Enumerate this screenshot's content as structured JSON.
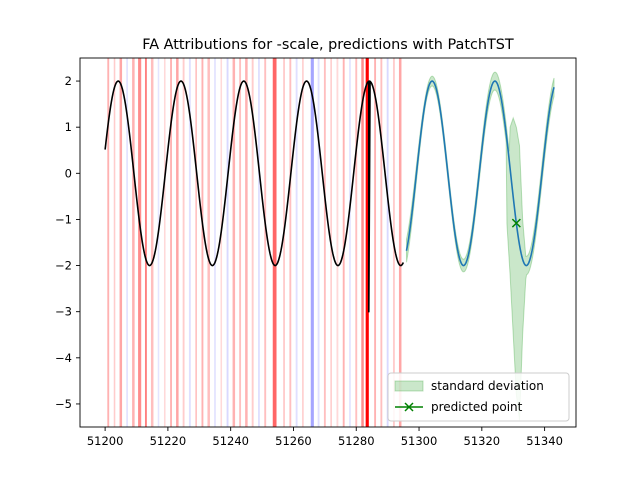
{
  "chart_data": {
    "type": "line",
    "title": "FA Attributions for -scale, predictions with PatchTST",
    "xlabel": "",
    "ylabel": "",
    "xlim": [
      51192,
      51350
    ],
    "ylim": [
      -5.5,
      2.5
    ],
    "xticks": [
      51200,
      51220,
      51240,
      51260,
      51280,
      51300,
      51320,
      51340
    ],
    "yticks": [
      -5,
      -4,
      -3,
      -2,
      -1,
      0,
      1,
      2
    ],
    "grid": false,
    "legend_position": "lower-right",
    "history": {
      "x_start": 51200,
      "x_end": 51295,
      "signal": "2*sin(2*pi*(x-51200)/20 + 0.26)",
      "color": "#000000",
      "anomaly": {
        "x": 51284,
        "min": -3.0
      }
    },
    "prediction": {
      "x_start": 51296,
      "x_end": 51343,
      "color": "#1f77b4",
      "std_color": "#2ca02c",
      "std_band": [
        {
          "x": 51296,
          "half_width": 0.25
        },
        {
          "x": 51302,
          "half_width": 0.1
        },
        {
          "x": 51309,
          "half_width": 0.12
        },
        {
          "x": 51318,
          "half_width": 0.15
        },
        {
          "x": 51325,
          "half_width": 0.2
        }
      ],
      "std_spike": [
        {
          "x": 51328,
          "upper": -1.1,
          "lower": -1.1
        },
        {
          "x": 51329,
          "upper": 1.0,
          "lower": -2.2
        },
        {
          "x": 51330,
          "upper": 1.2,
          "lower": -3.5
        },
        {
          "x": 51331,
          "upper": 1.0,
          "lower": -4.8
        },
        {
          "x": 51332,
          "upper": 0.6,
          "lower": -5.35
        },
        {
          "x": 51333,
          "upper": -1.0,
          "lower": -3.5
        },
        {
          "x": 51334,
          "upper": -1.8,
          "lower": -2.3
        }
      ]
    },
    "predicted_point": {
      "x": 51331,
      "y": -1.08,
      "color": "#008000",
      "marker": "x"
    },
    "attributions": [
      {
        "x": 51201,
        "w": 0.6,
        "color": "#ff0000",
        "alpha": 0.3
      },
      {
        "x": 51203,
        "w": 0.5,
        "color": "#ff0000",
        "alpha": 0.2
      },
      {
        "x": 51205,
        "w": 0.8,
        "color": "#ff0000",
        "alpha": 0.35
      },
      {
        "x": 51207,
        "w": 0.5,
        "color": "#0000ff",
        "alpha": 0.12
      },
      {
        "x": 51209,
        "w": 0.8,
        "color": "#ff0000",
        "alpha": 0.3
      },
      {
        "x": 51211,
        "w": 1.0,
        "color": "#ff0000",
        "alpha": 0.45
      },
      {
        "x": 51213,
        "w": 0.6,
        "color": "#ff0000",
        "alpha": 0.5
      },
      {
        "x": 51215,
        "w": 0.8,
        "color": "#ff0000",
        "alpha": 0.25
      },
      {
        "x": 51217,
        "w": 0.5,
        "color": "#0000ff",
        "alpha": 0.1
      },
      {
        "x": 51219,
        "w": 0.5,
        "color": "#ff0000",
        "alpha": 0.15
      },
      {
        "x": 51221,
        "w": 0.6,
        "color": "#ff0000",
        "alpha": 0.3
      },
      {
        "x": 51223,
        "w": 0.8,
        "color": "#ff0000",
        "alpha": 0.35
      },
      {
        "x": 51225,
        "w": 0.6,
        "color": "#ff0000",
        "alpha": 0.2
      },
      {
        "x": 51227,
        "w": 0.6,
        "color": "#0000ff",
        "alpha": 0.12
      },
      {
        "x": 51229,
        "w": 0.5,
        "color": "#ff0000",
        "alpha": 0.25
      },
      {
        "x": 51231,
        "w": 0.6,
        "color": "#ff0000",
        "alpha": 0.3
      },
      {
        "x": 51233,
        "w": 0.8,
        "color": "#ff0000",
        "alpha": 0.25
      },
      {
        "x": 51235,
        "w": 0.6,
        "color": "#0000ff",
        "alpha": 0.1
      },
      {
        "x": 51237,
        "w": 0.5,
        "color": "#ff0000",
        "alpha": 0.15
      },
      {
        "x": 51239,
        "w": 0.6,
        "color": "#0000ff",
        "alpha": 0.15
      },
      {
        "x": 51241,
        "w": 0.8,
        "color": "#ff0000",
        "alpha": 0.3
      },
      {
        "x": 51243,
        "w": 0.6,
        "color": "#ff0000",
        "alpha": 0.25
      },
      {
        "x": 51245,
        "w": 0.8,
        "color": "#ff0000",
        "alpha": 0.3
      },
      {
        "x": 51247,
        "w": 0.6,
        "color": "#ff0000",
        "alpha": 0.2
      },
      {
        "x": 51249,
        "w": 0.6,
        "color": "#0000ff",
        "alpha": 0.12
      },
      {
        "x": 51251,
        "w": 0.6,
        "color": "#ff0000",
        "alpha": 0.25
      },
      {
        "x": 51254,
        "w": 1.2,
        "color": "#ff0000",
        "alpha": 0.6
      },
      {
        "x": 51257,
        "w": 0.6,
        "color": "#ff0000",
        "alpha": 0.2
      },
      {
        "x": 51259,
        "w": 0.6,
        "color": "#ff0000",
        "alpha": 0.25
      },
      {
        "x": 51261,
        "w": 0.6,
        "color": "#0000ff",
        "alpha": 0.12
      },
      {
        "x": 51263,
        "w": 0.5,
        "color": "#ff0000",
        "alpha": 0.2
      },
      {
        "x": 51266,
        "w": 1.0,
        "color": "#0000ff",
        "alpha": 0.35
      },
      {
        "x": 51268,
        "w": 0.6,
        "color": "#0000ff",
        "alpha": 0.12
      },
      {
        "x": 51270,
        "w": 0.6,
        "color": "#ff0000",
        "alpha": 0.25
      },
      {
        "x": 51272,
        "w": 0.5,
        "color": "#ff0000",
        "alpha": 0.2
      },
      {
        "x": 51274,
        "w": 0.6,
        "color": "#ff0000",
        "alpha": 0.15
      },
      {
        "x": 51276,
        "w": 0.6,
        "color": "#ff0000",
        "alpha": 0.3
      },
      {
        "x": 51278,
        "w": 0.6,
        "color": "#0000ff",
        "alpha": 0.1
      },
      {
        "x": 51280,
        "w": 0.6,
        "color": "#ff0000",
        "alpha": 0.25
      },
      {
        "x": 51282,
        "w": 0.8,
        "color": "#ff0000",
        "alpha": 0.45
      },
      {
        "x": 51283.5,
        "w": 1.0,
        "color": "#ff0000",
        "alpha": 1.0
      },
      {
        "x": 51286,
        "w": 0.6,
        "color": "#ff0000",
        "alpha": 0.3
      },
      {
        "x": 51288,
        "w": 0.6,
        "color": "#ff0000",
        "alpha": 0.25
      },
      {
        "x": 51290,
        "w": 0.6,
        "color": "#0000ff",
        "alpha": 0.15
      },
      {
        "x": 51292,
        "w": 0.6,
        "color": "#ff0000",
        "alpha": 0.2
      },
      {
        "x": 51294,
        "w": 0.8,
        "color": "#ff0000",
        "alpha": 0.35
      }
    ],
    "legend": [
      {
        "label": "standard deviation",
        "kind": "patch",
        "color": "#2ca02c"
      },
      {
        "label": "predicted point",
        "kind": "line-x",
        "color": "#008000"
      }
    ]
  }
}
